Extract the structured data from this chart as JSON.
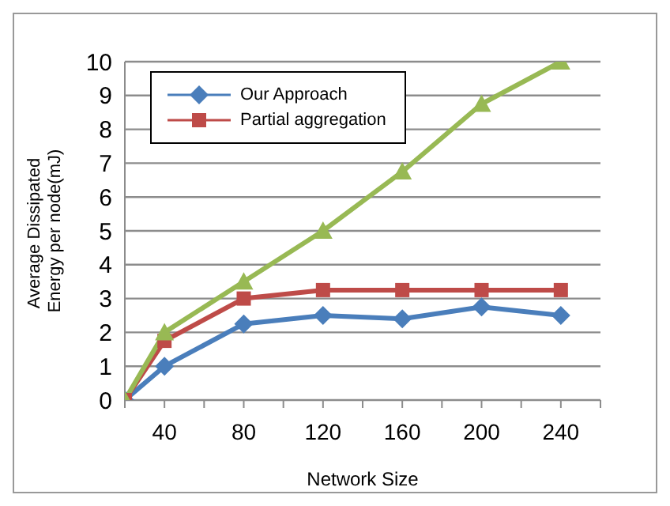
{
  "chart_data": {
    "type": "line",
    "xlabel": "Network Size",
    "ylabel": "Average Dissipated  Energy per node(mJ)",
    "x": [
      20,
      40,
      80,
      120,
      160,
      200,
      240
    ],
    "xlim": [
      20,
      260
    ],
    "xticks": [
      {
        "value": 20,
        "label": null
      },
      40,
      {
        "value": 60,
        "label": null
      },
      80,
      {
        "value": 100,
        "label": null
      },
      120,
      {
        "value": 140,
        "label": null
      },
      160,
      {
        "value": 180,
        "label": null
      },
      200,
      {
        "value": 220,
        "label": null
      },
      240,
      {
        "value": 260,
        "label": null
      }
    ],
    "ylim": [
      0,
      10
    ],
    "yticks": [
      0,
      1,
      2,
      3,
      4,
      5,
      6,
      7,
      8,
      9,
      10
    ],
    "grid": "y",
    "legend": "top left",
    "line_style": "solid",
    "series": [
      {
        "name": "Our Approach",
        "color": "#4a7ebb",
        "marker": "diamond",
        "values": [
          0,
          1,
          2.25,
          2.5,
          2.4,
          2.75,
          2.5
        ]
      },
      {
        "name": "Partial aggregation",
        "color": "#be4b48",
        "marker": "square",
        "values": [
          0,
          1.75,
          3,
          3.25,
          3.25,
          3.25,
          3.25
        ]
      },
      {
        "color": "#98b954",
        "marker": "triangle",
        "values": [
          0,
          2,
          3.5,
          5,
          6.75,
          8.75,
          10
        ]
      }
    ]
  }
}
